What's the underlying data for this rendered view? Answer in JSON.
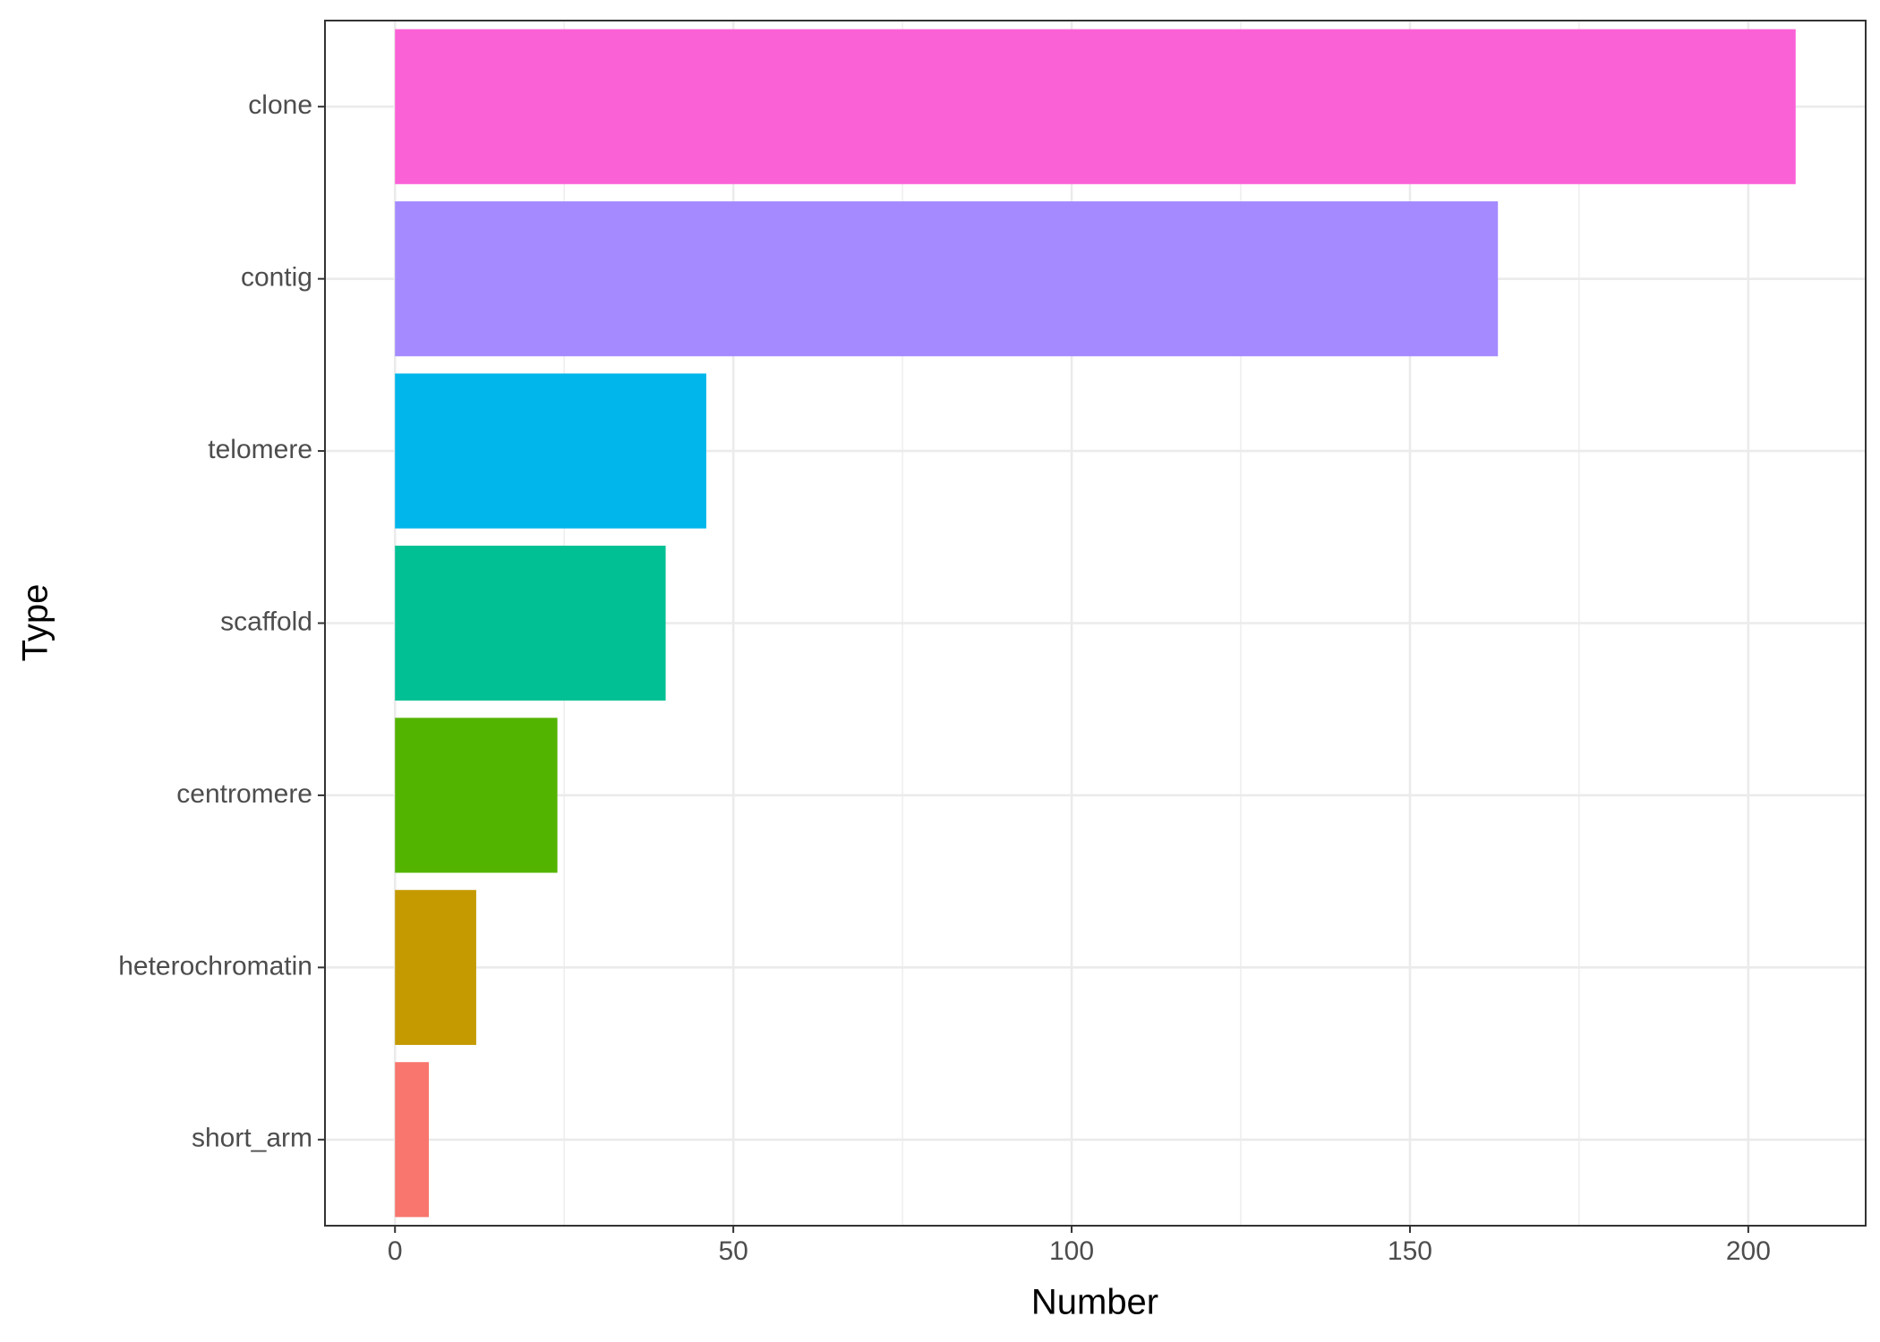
{
  "chart_data": {
    "type": "barh",
    "x_label": "Number",
    "y_label": "Type",
    "categories": [
      "clone",
      "contig",
      "telomere",
      "scaffold",
      "centromere",
      "heterochromatin",
      "short_arm"
    ],
    "values": [
      207,
      163,
      46,
      40,
      24,
      12,
      5
    ],
    "colors": [
      "#FB61D7",
      "#A58AFF",
      "#00B6EB",
      "#00C094",
      "#53B400",
      "#C49A00",
      "#F8766D"
    ],
    "xlim": [
      -10.35,
      217.35
    ],
    "xticks": [
      0,
      50,
      100,
      150,
      200
    ],
    "xminor": [
      25,
      75,
      125,
      175
    ],
    "grid": true
  }
}
